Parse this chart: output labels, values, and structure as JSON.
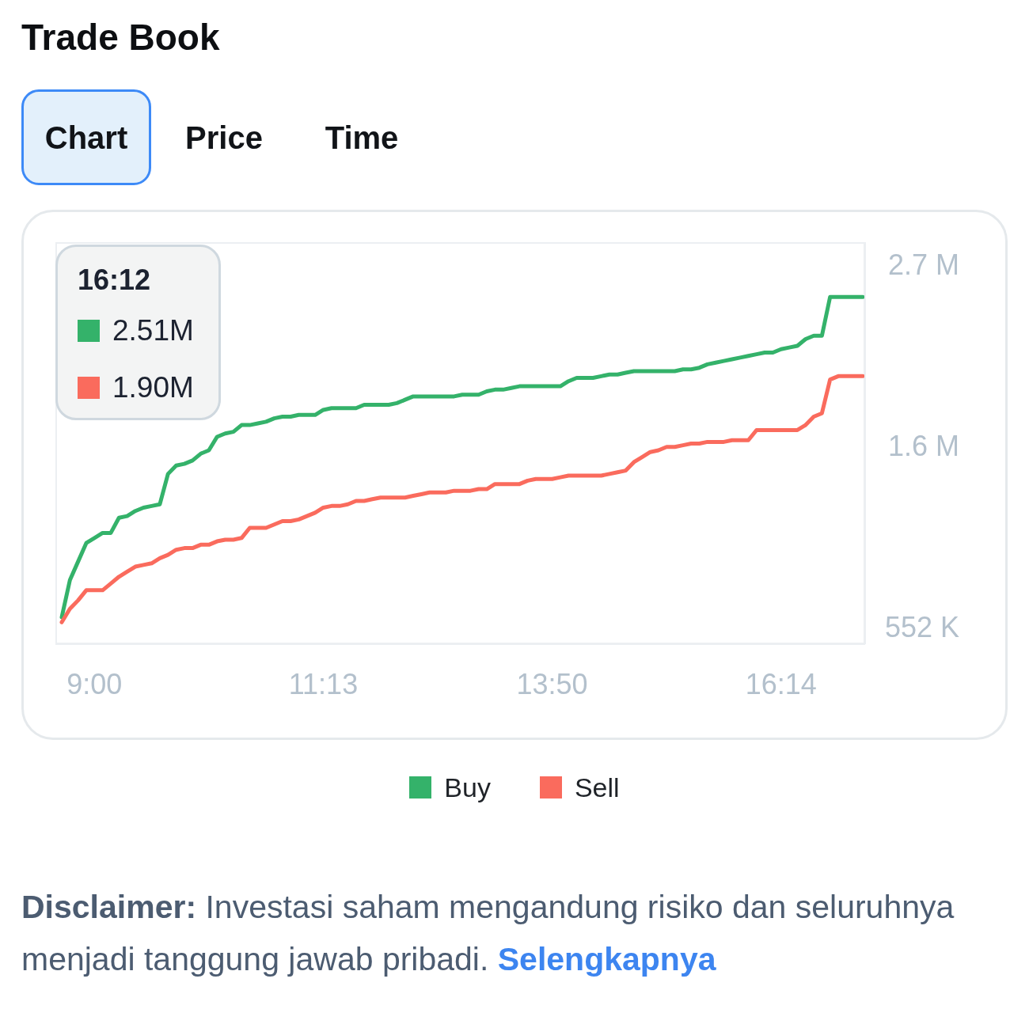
{
  "chart_data": {
    "type": "line",
    "title": "Trade Book",
    "categories": [
      null,
      null,
      null,
      null,
      "9:00",
      null,
      null,
      null,
      null,
      null,
      null,
      null,
      null,
      null,
      null,
      null,
      null,
      null,
      null,
      null,
      null,
      null,
      null,
      null,
      null,
      null,
      null,
      null,
      null,
      null,
      null,
      null,
      "11:13",
      null,
      null,
      null,
      null,
      null,
      null,
      null,
      null,
      null,
      null,
      null,
      null,
      null,
      null,
      null,
      null,
      null,
      null,
      null,
      null,
      null,
      null,
      null,
      null,
      null,
      null,
      null,
      "13:50",
      null,
      null,
      null,
      null,
      null,
      null,
      null,
      null,
      null,
      null,
      null,
      null,
      null,
      null,
      null,
      null,
      null,
      null,
      null,
      null,
      null,
      null,
      null,
      null,
      null,
      null,
      null,
      "16:14",
      null,
      null,
      null,
      null,
      null,
      null,
      null,
      null,
      null,
      null
    ],
    "series": [
      {
        "name": "Buy",
        "color": "#34b26a",
        "values": [
          610000,
          830000,
          940000,
          1050000,
          1080000,
          1110000,
          1110000,
          1200000,
          1210000,
          1240000,
          1260000,
          1270000,
          1280000,
          1460000,
          1510000,
          1520000,
          1540000,
          1580000,
          1600000,
          1680000,
          1700000,
          1710000,
          1750000,
          1750000,
          1760000,
          1770000,
          1790000,
          1800000,
          1800000,
          1810000,
          1810000,
          1810000,
          1840000,
          1850000,
          1850000,
          1850000,
          1850000,
          1870000,
          1870000,
          1870000,
          1870000,
          1880000,
          1900000,
          1920000,
          1920000,
          1920000,
          1920000,
          1920000,
          1920000,
          1930000,
          1930000,
          1930000,
          1950000,
          1960000,
          1960000,
          1970000,
          1980000,
          1980000,
          1980000,
          1980000,
          1980000,
          1980000,
          2010000,
          2030000,
          2030000,
          2030000,
          2040000,
          2050000,
          2050000,
          2060000,
          2070000,
          2070000,
          2070000,
          2070000,
          2070000,
          2070000,
          2080000,
          2080000,
          2090000,
          2110000,
          2120000,
          2130000,
          2140000,
          2150000,
          2160000,
          2170000,
          2180000,
          2180000,
          2200000,
          2210000,
          2220000,
          2260000,
          2280000,
          2280000,
          2510000,
          2510000,
          2510000,
          2510000,
          2510000
        ]
      },
      {
        "name": "Sell",
        "color": "#fa6b5d",
        "values": [
          580000,
          660000,
          710000,
          770000,
          770000,
          770000,
          810000,
          850000,
          880000,
          910000,
          920000,
          930000,
          960000,
          980000,
          1010000,
          1020000,
          1020000,
          1040000,
          1040000,
          1060000,
          1070000,
          1070000,
          1080000,
          1140000,
          1140000,
          1140000,
          1160000,
          1180000,
          1180000,
          1190000,
          1210000,
          1230000,
          1260000,
          1270000,
          1270000,
          1280000,
          1300000,
          1300000,
          1310000,
          1320000,
          1320000,
          1320000,
          1320000,
          1330000,
          1340000,
          1350000,
          1350000,
          1350000,
          1360000,
          1360000,
          1360000,
          1370000,
          1370000,
          1400000,
          1400000,
          1400000,
          1400000,
          1420000,
          1430000,
          1430000,
          1430000,
          1440000,
          1450000,
          1450000,
          1450000,
          1450000,
          1450000,
          1460000,
          1470000,
          1480000,
          1530000,
          1560000,
          1590000,
          1600000,
          1620000,
          1620000,
          1630000,
          1640000,
          1640000,
          1650000,
          1650000,
          1650000,
          1660000,
          1660000,
          1660000,
          1720000,
          1720000,
          1720000,
          1720000,
          1720000,
          1720000,
          1750000,
          1800000,
          1820000,
          2020000,
          2040000,
          2040000,
          2040000,
          2040000
        ]
      }
    ],
    "ylim": [
      450000,
      2835000
    ],
    "yticks": [
      {
        "value": 552000,
        "label": "552 K"
      },
      {
        "value": 1626000,
        "label": "1.6 M"
      },
      {
        "value": 2700000,
        "label": "2.7 M"
      }
    ],
    "legend": "bottom",
    "annotations": [
      "Chart",
      "Price",
      "Time",
      "16:12",
      "2.51M",
      "1.90M",
      "Disclaimer:",
      "Investasi saham mengandung risiko dan seluruhnya",
      "menjadi tanggung jawab pribadi.",
      "Selengkapnya"
    ]
  }
}
